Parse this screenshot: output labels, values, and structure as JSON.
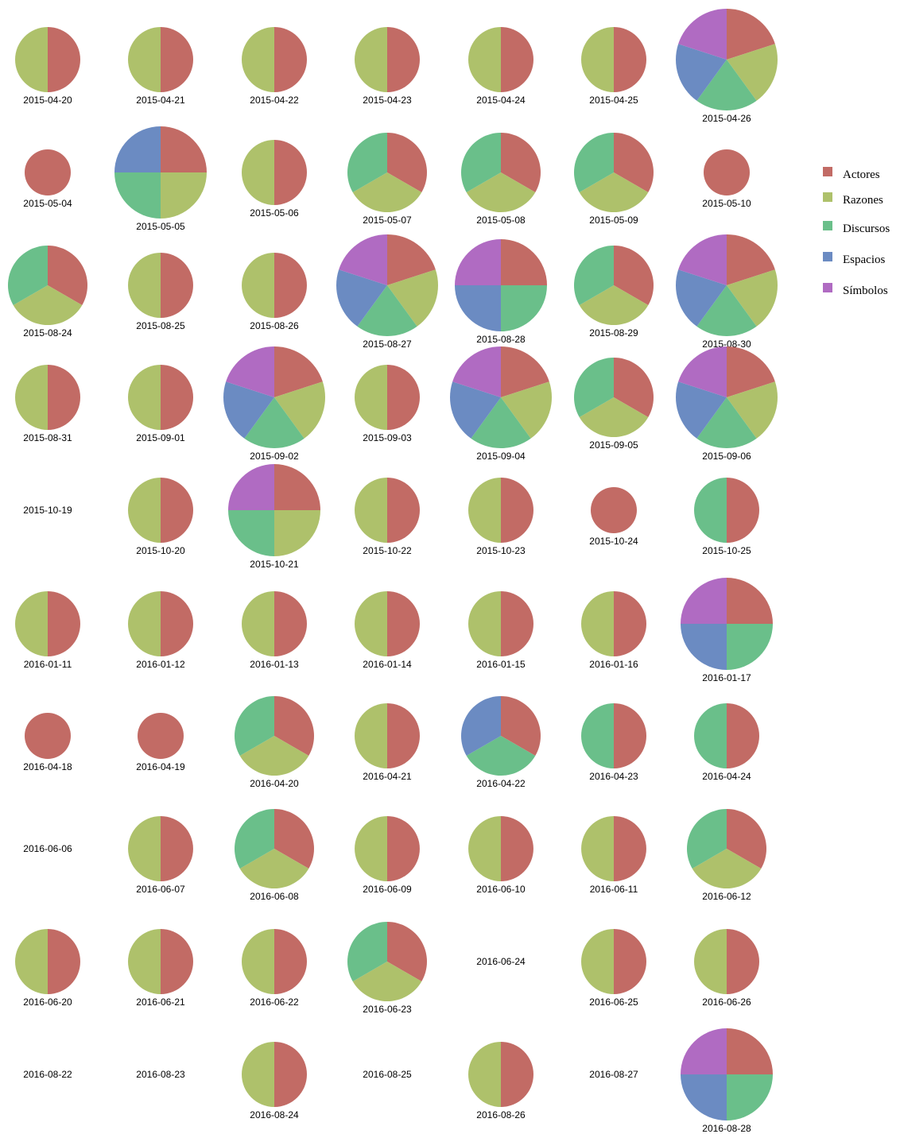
{
  "chart_data": {
    "type": "pie",
    "categories": [
      "Actores",
      "Razones",
      "Discursos",
      "Espacios",
      "Símbolos"
    ],
    "colors": {
      "Actores": "#c26b65",
      "Razones": "#aec16b",
      "Discursos": "#6abf8a",
      "Espacios": "#6b8bc2",
      "Símbolos": "#b06bc2"
    },
    "legend": {
      "placement": "right",
      "items": [
        "Actores",
        "Razones",
        "Discursos",
        "Espacios",
        "Símbolos"
      ]
    },
    "pies": [
      {
        "date": "2015-04-20",
        "slices": [
          "Actores",
          "Razones"
        ]
      },
      {
        "date": "2015-04-21",
        "slices": [
          "Actores",
          "Razones"
        ]
      },
      {
        "date": "2015-04-22",
        "slices": [
          "Actores",
          "Razones"
        ]
      },
      {
        "date": "2015-04-23",
        "slices": [
          "Actores",
          "Razones"
        ]
      },
      {
        "date": "2015-04-24",
        "slices": [
          "Actores",
          "Razones"
        ]
      },
      {
        "date": "2015-04-25",
        "slices": [
          "Actores",
          "Razones"
        ]
      },
      {
        "date": "2015-04-26",
        "slices": [
          "Actores",
          "Razones",
          "Discursos",
          "Espacios",
          "Símbolos"
        ]
      },
      {
        "date": "2015-05-04",
        "slices": [
          "Actores"
        ]
      },
      {
        "date": "2015-05-05",
        "slices": [
          "Actores",
          "Razones",
          "Discursos",
          "Espacios"
        ]
      },
      {
        "date": "2015-05-06",
        "slices": [
          "Actores",
          "Razones"
        ]
      },
      {
        "date": "2015-05-07",
        "slices": [
          "Actores",
          "Razones",
          "Discursos"
        ]
      },
      {
        "date": "2015-05-08",
        "slices": [
          "Actores",
          "Razones",
          "Discursos"
        ]
      },
      {
        "date": "2015-05-09",
        "slices": [
          "Actores",
          "Razones",
          "Discursos"
        ]
      },
      {
        "date": "2015-05-10",
        "slices": [
          "Actores"
        ]
      },
      {
        "date": "2015-08-24",
        "slices": [
          "Actores",
          "Razones",
          "Discursos"
        ]
      },
      {
        "date": "2015-08-25",
        "slices": [
          "Actores",
          "Razones"
        ]
      },
      {
        "date": "2015-08-26",
        "slices": [
          "Actores",
          "Razones"
        ]
      },
      {
        "date": "2015-08-27",
        "slices": [
          "Actores",
          "Razones",
          "Discursos",
          "Espacios",
          "Símbolos"
        ]
      },
      {
        "date": "2015-08-28",
        "slices": [
          "Actores",
          "Discursos",
          "Espacios",
          "Símbolos"
        ]
      },
      {
        "date": "2015-08-29",
        "slices": [
          "Actores",
          "Razones",
          "Discursos"
        ]
      },
      {
        "date": "2015-08-30",
        "slices": [
          "Actores",
          "Razones",
          "Discursos",
          "Espacios",
          "Símbolos"
        ]
      },
      {
        "date": "2015-08-31",
        "slices": [
          "Actores",
          "Razones"
        ]
      },
      {
        "date": "2015-09-01",
        "slices": [
          "Actores",
          "Razones"
        ]
      },
      {
        "date": "2015-09-02",
        "slices": [
          "Actores",
          "Razones",
          "Discursos",
          "Espacios",
          "Símbolos"
        ]
      },
      {
        "date": "2015-09-03",
        "slices": [
          "Actores",
          "Razones"
        ]
      },
      {
        "date": "2015-09-04",
        "slices": [
          "Actores",
          "Razones",
          "Discursos",
          "Espacios",
          "Símbolos"
        ]
      },
      {
        "date": "2015-09-05",
        "slices": [
          "Actores",
          "Razones",
          "Discursos"
        ]
      },
      {
        "date": "2015-09-06",
        "slices": [
          "Actores",
          "Razones",
          "Discursos",
          "Espacios",
          "Símbolos"
        ]
      },
      {
        "date": "2015-10-19",
        "slices": []
      },
      {
        "date": "2015-10-20",
        "slices": [
          "Actores",
          "Razones"
        ]
      },
      {
        "date": "2015-10-21",
        "slices": [
          "Actores",
          "Razones",
          "Discursos",
          "Símbolos"
        ]
      },
      {
        "date": "2015-10-22",
        "slices": [
          "Actores",
          "Razones"
        ]
      },
      {
        "date": "2015-10-23",
        "slices": [
          "Actores",
          "Razones"
        ]
      },
      {
        "date": "2015-10-24",
        "slices": [
          "Actores"
        ]
      },
      {
        "date": "2015-10-25",
        "slices": [
          "Actores",
          "Discursos"
        ]
      },
      {
        "date": "2016-01-11",
        "slices": [
          "Actores",
          "Razones"
        ]
      },
      {
        "date": "2016-01-12",
        "slices": [
          "Actores",
          "Razones"
        ]
      },
      {
        "date": "2016-01-13",
        "slices": [
          "Actores",
          "Razones"
        ]
      },
      {
        "date": "2016-01-14",
        "slices": [
          "Actores",
          "Razones"
        ]
      },
      {
        "date": "2016-01-15",
        "slices": [
          "Actores",
          "Razones"
        ]
      },
      {
        "date": "2016-01-16",
        "slices": [
          "Actores",
          "Razones"
        ]
      },
      {
        "date": "2016-01-17",
        "slices": [
          "Actores",
          "Discursos",
          "Espacios",
          "Símbolos"
        ]
      },
      {
        "date": "2016-04-18",
        "slices": [
          "Actores"
        ]
      },
      {
        "date": "2016-04-19",
        "slices": [
          "Actores"
        ]
      },
      {
        "date": "2016-04-20",
        "slices": [
          "Actores",
          "Razones",
          "Discursos"
        ]
      },
      {
        "date": "2016-04-21",
        "slices": [
          "Actores",
          "Razones"
        ]
      },
      {
        "date": "2016-04-22",
        "slices": [
          "Actores",
          "Discursos",
          "Espacios"
        ]
      },
      {
        "date": "2016-04-23",
        "slices": [
          "Actores",
          "Discursos"
        ]
      },
      {
        "date": "2016-04-24",
        "slices": [
          "Actores",
          "Discursos"
        ]
      },
      {
        "date": "2016-06-06",
        "slices": []
      },
      {
        "date": "2016-06-07",
        "slices": [
          "Actores",
          "Razones"
        ]
      },
      {
        "date": "2016-06-08",
        "slices": [
          "Actores",
          "Razones",
          "Discursos"
        ]
      },
      {
        "date": "2016-06-09",
        "slices": [
          "Actores",
          "Razones"
        ]
      },
      {
        "date": "2016-06-10",
        "slices": [
          "Actores",
          "Razones"
        ]
      },
      {
        "date": "2016-06-11",
        "slices": [
          "Actores",
          "Razones"
        ]
      },
      {
        "date": "2016-06-12",
        "slices": [
          "Actores",
          "Razones",
          "Discursos"
        ]
      },
      {
        "date": "2016-06-20",
        "slices": [
          "Actores",
          "Razones"
        ]
      },
      {
        "date": "2016-06-21",
        "slices": [
          "Actores",
          "Razones"
        ]
      },
      {
        "date": "2016-06-22",
        "slices": [
          "Actores",
          "Razones"
        ]
      },
      {
        "date": "2016-06-23",
        "slices": [
          "Actores",
          "Razones",
          "Discursos"
        ]
      },
      {
        "date": "2016-06-24",
        "slices": []
      },
      {
        "date": "2016-06-25",
        "slices": [
          "Actores",
          "Razones"
        ]
      },
      {
        "date": "2016-06-26",
        "slices": [
          "Actores",
          "Razones"
        ]
      },
      {
        "date": "2016-08-22",
        "slices": []
      },
      {
        "date": "2016-08-23",
        "slices": []
      },
      {
        "date": "2016-08-24",
        "slices": [
          "Actores",
          "Razones"
        ]
      },
      {
        "date": "2016-08-25",
        "slices": []
      },
      {
        "date": "2016-08-26",
        "slices": [
          "Actores",
          "Razones"
        ]
      },
      {
        "date": "2016-08-27",
        "slices": []
      },
      {
        "date": "2016-08-28",
        "slices": [
          "Actores",
          "Discursos",
          "Espacios",
          "Símbolos"
        ]
      }
    ]
  }
}
